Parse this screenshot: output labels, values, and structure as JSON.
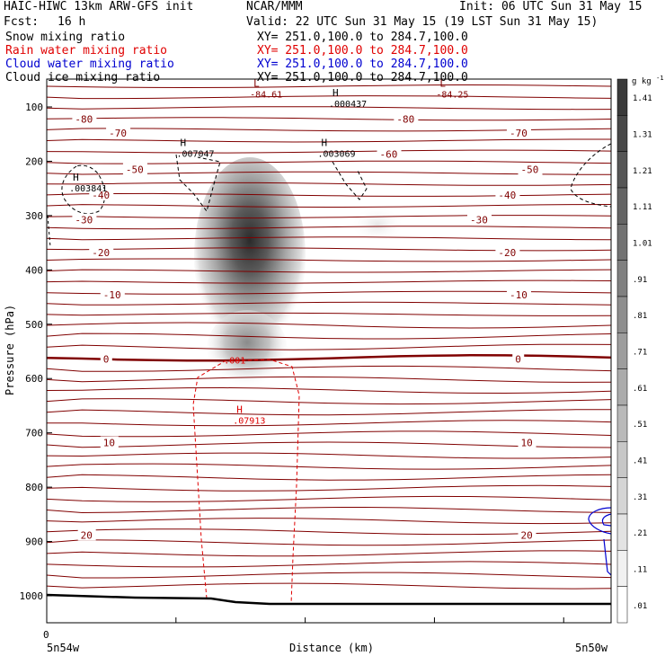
{
  "header": {
    "model": "HAIC-HIWC 13km ARW-GFS init",
    "org": "NCAR/MMM",
    "init": "Init: 06 UTC Sun 31 May 15",
    "fcst_label": "Fcst:",
    "fcst_value": "16 h",
    "valid": "Valid: 22 UTC Sun 31 May 15 (19 LST Sun 31 May 15)"
  },
  "legend": [
    {
      "label": "Snow mixing ratio",
      "xy": "XY= 251.0,100.0 to 284.7,100.0",
      "color": "#000000"
    },
    {
      "label": "Rain water mixing ratio",
      "xy": "XY= 251.0,100.0 to 284.7,100.0",
      "color": "#e00000"
    },
    {
      "label": "Cloud water mixing ratio",
      "xy": "XY= 251.0,100.0 to 284.7,100.0",
      "color": "#0000d0"
    },
    {
      "label": "Cloud ice mixing ratio",
      "xy": "XY= 251.0,100.0 to 284.7,100.0",
      "color": "#000000"
    }
  ],
  "colors": {
    "temperature": "#800000",
    "rain": "#e00000",
    "cloud_water": "#0000d0",
    "ground": "#000000"
  },
  "chart_data": {
    "type": "contour",
    "xlabel": "Distance (km)",
    "ylabel": "Pressure (hPa)",
    "x_start_tick": "0",
    "x_left_label": "5n54w",
    "x_right_label": "5n50w",
    "yticks": [
      100,
      200,
      300,
      400,
      500,
      600,
      700,
      800,
      900,
      1000
    ],
    "ylim": [
      1050,
      50
    ],
    "colorbar": {
      "unit": "g kg",
      "unit_exp": "-1",
      "levels": [
        ".01",
        ".11",
        ".21",
        ".31",
        ".41",
        ".51",
        ".61",
        ".71",
        ".81",
        ".91",
        "1.01",
        "1.11",
        "1.21",
        "1.31",
        "1.41"
      ]
    },
    "temperature_labels": [
      {
        "text": "-80",
        "x": 0.05,
        "p": 122
      },
      {
        "text": "-80",
        "x": 0.62,
        "p": 122
      },
      {
        "text": "-70",
        "x": 0.11,
        "p": 148
      },
      {
        "text": "-70",
        "x": 0.82,
        "p": 148
      },
      {
        "text": "-60",
        "x": 0.59,
        "p": 187
      },
      {
        "text": "-50",
        "x": 0.14,
        "p": 215
      },
      {
        "text": "-50",
        "x": 0.84,
        "p": 215
      },
      {
        "text": "-40",
        "x": 0.08,
        "p": 262
      },
      {
        "text": "-40",
        "x": 0.8,
        "p": 262
      },
      {
        "text": "-30",
        "x": 0.05,
        "p": 308
      },
      {
        "text": "-30",
        "x": 0.75,
        "p": 308
      },
      {
        "text": "-20",
        "x": 0.08,
        "p": 368
      },
      {
        "text": "-20",
        "x": 0.8,
        "p": 368
      },
      {
        "text": "-10",
        "x": 0.1,
        "p": 446
      },
      {
        "text": "-10",
        "x": 0.82,
        "p": 446
      },
      {
        "text": "0",
        "x": 0.1,
        "p": 564
      },
      {
        "text": "0",
        "x": 0.83,
        "p": 564
      },
      {
        "text": "10",
        "x": 0.1,
        "p": 718
      },
      {
        "text": "10",
        "x": 0.84,
        "p": 718
      },
      {
        "text": "20",
        "x": 0.06,
        "p": 888
      },
      {
        "text": "20",
        "x": 0.84,
        "p": 888
      }
    ],
    "extrema": [
      {
        "symbol": "L",
        "value": "-84.61",
        "x": 0.36,
        "p": 63,
        "color": "#800000"
      },
      {
        "symbol": "L",
        "value": "-84.25",
        "x": 0.69,
        "p": 63,
        "color": "#800000"
      },
      {
        "symbol": "H",
        "value": ".000437",
        "x": 0.5,
        "p": 80,
        "color": "#000000"
      },
      {
        "symbol": "H",
        "value": ".007047",
        "x": 0.23,
        "p": 172,
        "color": "#000000"
      },
      {
        "symbol": "H",
        "value": ".003069",
        "x": 0.48,
        "p": 172,
        "color": "#000000"
      },
      {
        "symbol": "H",
        "value": ".003841",
        "x": 0.04,
        "p": 236,
        "color": "#000000"
      },
      {
        "symbol": "H",
        "value": ".07913",
        "x": 0.33,
        "p": 663,
        "color": "#e00000"
      }
    ],
    "rain_contour_label": {
      "text": ".001",
      "x": 0.33,
      "p": 566
    },
    "snow_max": 1.41
  }
}
